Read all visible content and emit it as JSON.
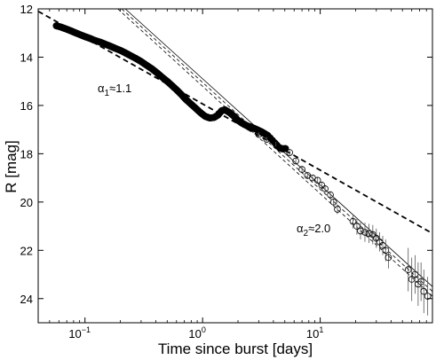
{
  "chart_data": {
    "type": "scatter",
    "xlabel": "Time since burst [days]",
    "ylabel": "R [mag]",
    "x_scale": "log",
    "xlim": [
      0.04,
      90
    ],
    "ylim": [
      25,
      12
    ],
    "y_inverted": true,
    "x_ticks": [
      {
        "value": 0.1,
        "base": "10",
        "exp": "−1"
      },
      {
        "value": 1,
        "base": "10",
        "exp": "0"
      },
      {
        "value": 10,
        "base": "10",
        "exp": "1"
      }
    ],
    "y_ticks": [
      {
        "value": 12,
        "label": "12"
      },
      {
        "value": 14,
        "label": "14"
      },
      {
        "value": 16,
        "label": "16"
      },
      {
        "value": 18,
        "label": "18"
      },
      {
        "value": 20,
        "label": "20"
      },
      {
        "value": 22,
        "label": "22"
      },
      {
        "value": 24,
        "label": "24"
      }
    ],
    "grid": false,
    "annotations": [
      {
        "text_base": "α",
        "text_sub": "1",
        "text_rest": "≈1.1",
        "x": 0.1,
        "y": 15.8
      },
      {
        "text_base": "α",
        "text_sub": "2",
        "text_rest": "≈2.0",
        "x": 13.5,
        "y": 20.8
      }
    ],
    "fits": [
      {
        "name": "alpha1",
        "style": "thick-dashed",
        "points": [
          [
            0.04,
            12.1
          ],
          [
            90,
            21.3
          ]
        ]
      },
      {
        "name": "alpha2",
        "style": "thin-dashed",
        "points": [
          [
            0.19,
            12.0
          ],
          [
            90,
            23.9
          ]
        ]
      },
      {
        "name": "alpha2-bound-a",
        "style": "thin-dashed",
        "points": [
          [
            0.205,
            12.0
          ],
          [
            90,
            23.7
          ]
        ]
      },
      {
        "name": "alpha2-bound-b",
        "style": "thin-solid",
        "points": [
          [
            0.22,
            12.0
          ],
          [
            90,
            23.5
          ]
        ]
      }
    ],
    "series": [
      {
        "kind": "dense",
        "points": [
          [
            0.057,
            12.7
          ],
          [
            0.062,
            12.75
          ],
          [
            0.068,
            12.82
          ],
          [
            0.075,
            12.9
          ],
          [
            0.082,
            12.98
          ],
          [
            0.09,
            13.06
          ],
          [
            0.1,
            13.15
          ],
          [
            0.11,
            13.22
          ],
          [
            0.12,
            13.3
          ],
          [
            0.135,
            13.38
          ],
          [
            0.15,
            13.47
          ],
          [
            0.165,
            13.55
          ],
          [
            0.18,
            13.63
          ],
          [
            0.2,
            13.72
          ],
          [
            0.22,
            13.82
          ],
          [
            0.24,
            13.92
          ],
          [
            0.27,
            14.05
          ],
          [
            0.3,
            14.18
          ],
          [
            0.33,
            14.32
          ],
          [
            0.37,
            14.48
          ],
          [
            0.41,
            14.65
          ],
          [
            0.45,
            14.82
          ],
          [
            0.5,
            15.0
          ],
          [
            0.55,
            15.18
          ],
          [
            0.6,
            15.35
          ],
          [
            0.66,
            15.55
          ],
          [
            0.72,
            15.75
          ],
          [
            0.8,
            15.95
          ],
          [
            0.88,
            16.13
          ],
          [
            0.96,
            16.3
          ],
          [
            1.05,
            16.45
          ],
          [
            1.15,
            16.52
          ],
          [
            1.25,
            16.5
          ],
          [
            1.35,
            16.4
          ],
          [
            1.45,
            16.22
          ],
          [
            1.55,
            16.18
          ],
          [
            1.7,
            16.3
          ],
          [
            1.85,
            16.45
          ],
          [
            2.0,
            16.62
          ],
          [
            2.2,
            16.75
          ],
          [
            2.4,
            16.85
          ],
          [
            2.6,
            16.9
          ],
          [
            2.9,
            17.0
          ],
          [
            3.2,
            17.1
          ],
          [
            3.6,
            17.25
          ],
          [
            4.5,
            17.75
          ],
          [
            4.8,
            17.8
          ],
          [
            5.1,
            17.78
          ]
        ]
      },
      {
        "kind": "errorbar",
        "points": [
          [
            3.0,
            17.2,
            0.1
          ],
          [
            3.5,
            17.4,
            0.1
          ],
          [
            4.2,
            17.6,
            0.1
          ],
          [
            5.5,
            17.95,
            0.1
          ],
          [
            6.2,
            18.3,
            0.12
          ],
          [
            7.0,
            18.65,
            0.12
          ],
          [
            7.8,
            18.9,
            0.12
          ],
          [
            8.6,
            19.0,
            0.12
          ],
          [
            9.5,
            19.1,
            0.12
          ],
          [
            10.3,
            19.3,
            0.15
          ],
          [
            11.0,
            19.45,
            0.15
          ],
          [
            12.2,
            19.7,
            0.15
          ],
          [
            13.0,
            20.0,
            0.15
          ],
          [
            14.0,
            20.3,
            0.2
          ],
          [
            19.0,
            20.8,
            0.3
          ],
          [
            20.5,
            21.0,
            0.35
          ],
          [
            22.0,
            21.2,
            0.35
          ],
          [
            24.0,
            21.25,
            0.4
          ],
          [
            26.0,
            21.3,
            0.4
          ],
          [
            28.0,
            21.35,
            0.4
          ],
          [
            30.0,
            21.5,
            0.4
          ],
          [
            32.0,
            21.65,
            0.4
          ],
          [
            34.0,
            21.8,
            0.4
          ],
          [
            36.0,
            22.0,
            0.45
          ],
          [
            38.0,
            22.3,
            0.45
          ],
          [
            56.0,
            22.8,
            0.9
          ],
          [
            60.0,
            23.2,
            0.9
          ],
          [
            64.0,
            23.0,
            0.8
          ],
          [
            68.0,
            23.4,
            0.9
          ],
          [
            72.0,
            23.3,
            0.8
          ],
          [
            76.0,
            23.7,
            0.9
          ],
          [
            82.0,
            23.9,
            0.8
          ]
        ]
      }
    ]
  }
}
